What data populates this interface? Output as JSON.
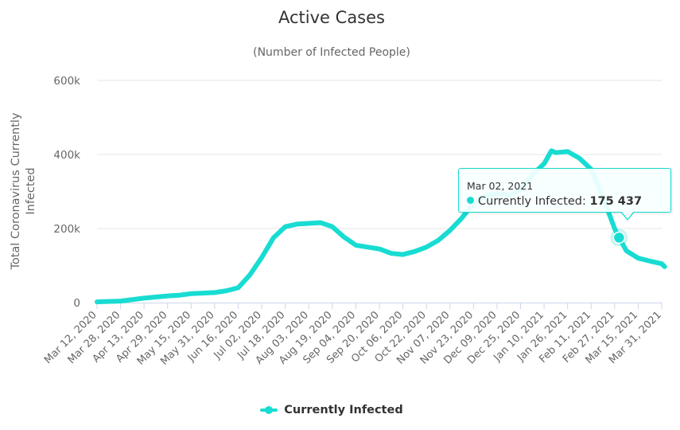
{
  "chart_data": {
    "type": "line",
    "title": "Active Cases",
    "subtitle": "(Number of Infected People)",
    "ylabel": "Total Coronavirus Currently Infected",
    "xlabel": "",
    "ylim": [
      0,
      600000
    ],
    "y_ticks": [
      "0",
      "200k",
      "400k",
      "600k"
    ],
    "y_tick_values": [
      0,
      200000,
      400000,
      600000
    ],
    "x_tick_labels": [
      "Mar 12, 2020",
      "Mar 28, 2020",
      "Apr 13, 2020",
      "Apr 29, 2020",
      "May 15, 2020",
      "May 31, 2020",
      "Jun 16, 2020",
      "Jul 02, 2020",
      "Jul 18, 2020",
      "Aug 03, 2020",
      "Aug 19, 2020",
      "Sep 04, 2020",
      "Sep 20, 2020",
      "Oct 06, 2020",
      "Oct 22, 2020",
      "Nov 07, 2020",
      "Nov 23, 2020",
      "Dec 09, 2020",
      "Dec 25, 2020",
      "Jan 10, 2021",
      "Jan 26, 2021",
      "Feb 11, 2021",
      "Feb 27, 2021",
      "Mar 15, 2021",
      "Mar 31, 2021"
    ],
    "grid": true,
    "legend_position": "bottom",
    "series": [
      {
        "name": "Currently Infected",
        "color": "#18dcd2",
        "x": [
          "Mar 12, 2020",
          "Mar 28, 2020",
          "Apr 13, 2020",
          "Apr 29, 2020",
          "May 07, 2020",
          "May 15, 2020",
          "May 31, 2020",
          "Jun 08, 2020",
          "Jun 16, 2020",
          "Jun 24, 2020",
          "Jul 02, 2020",
          "Jul 10, 2020",
          "Jul 18, 2020",
          "Jul 26, 2020",
          "Aug 03, 2020",
          "Aug 11, 2020",
          "Aug 19, 2020",
          "Aug 27, 2020",
          "Sep 04, 2020",
          "Sep 12, 2020",
          "Sep 20, 2020",
          "Sep 28, 2020",
          "Oct 06, 2020",
          "Oct 14, 2020",
          "Oct 22, 2020",
          "Oct 30, 2020",
          "Nov 07, 2020",
          "Nov 15, 2020",
          "Nov 23, 2020",
          "Dec 01, 2020",
          "Dec 09, 2020",
          "Dec 17, 2020",
          "Dec 25, 2020",
          "Jan 02, 2021",
          "Jan 10, 2021",
          "Jan 15, 2021",
          "Jan 18, 2021",
          "Jan 26, 2021",
          "Feb 03, 2021",
          "Feb 11, 2021",
          "Feb 19, 2021",
          "Feb 27, 2021",
          "Mar 02, 2021",
          "Mar 07, 2021",
          "Mar 15, 2021",
          "Mar 23, 2021",
          "Mar 31, 2021",
          "Apr 02, 2021"
        ],
        "values": [
          2000,
          4000,
          12000,
          18000,
          20000,
          24000,
          27000,
          32000,
          40000,
          75000,
          122000,
          175000,
          205000,
          212000,
          214000,
          216000,
          205000,
          177000,
          155000,
          150000,
          145000,
          133000,
          130000,
          138000,
          150000,
          168000,
          195000,
          228000,
          268000,
          288000,
          295000,
          290000,
          305000,
          345000,
          375000,
          410000,
          405000,
          408000,
          390000,
          360000,
          285000,
          200000,
          175437,
          140000,
          120000,
          112000,
          105000,
          97000
        ]
      }
    ],
    "tooltip": {
      "date": "Mar 02, 2021",
      "series_name": "Currently Infected",
      "value_text": "175 437",
      "value": 175437
    }
  }
}
